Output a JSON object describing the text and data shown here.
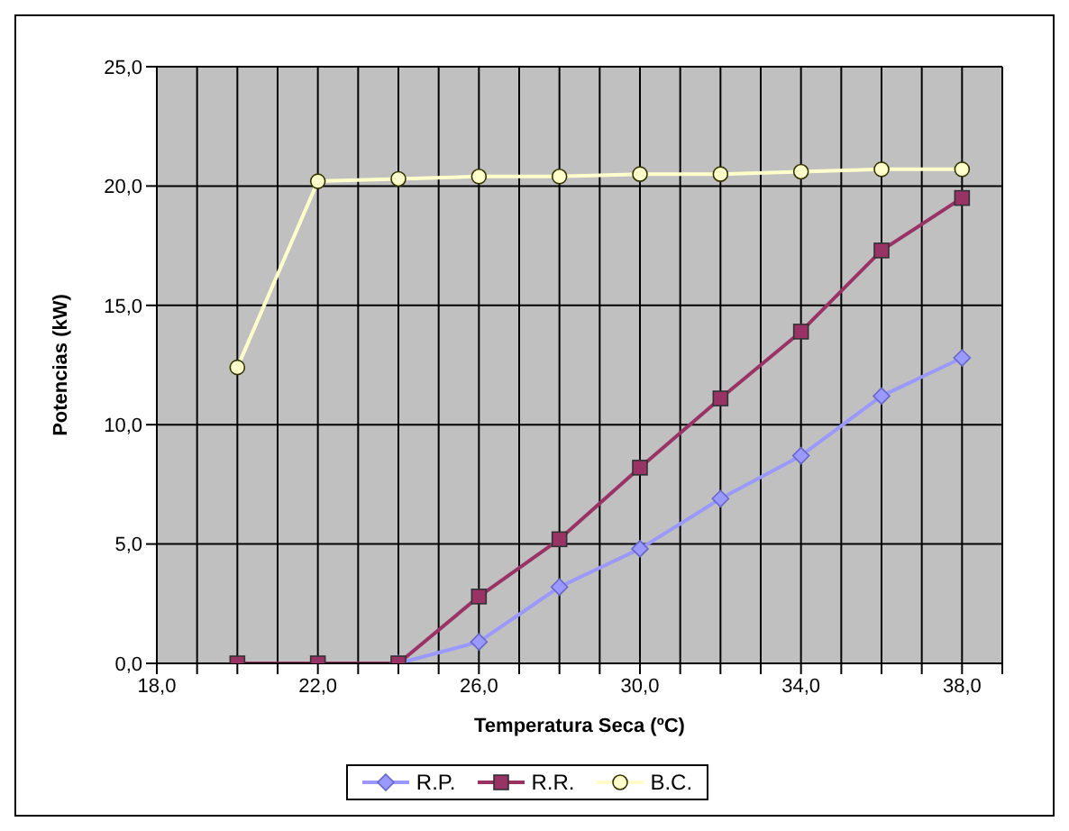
{
  "chart_data": {
    "type": "line",
    "xlabel": "Temperatura Seca (ºC)",
    "ylabel": "Potencias (kW)",
    "x": [
      20,
      22,
      24,
      26,
      28,
      30,
      32,
      34,
      36,
      38
    ],
    "xlim": [
      18,
      39
    ],
    "xticks": [
      {
        "value": 18,
        "label": "18,0"
      },
      {
        "value": 19,
        "label": null
      },
      {
        "value": 20,
        "label": null
      },
      {
        "value": 21,
        "label": null
      },
      {
        "value": 22,
        "label": "22,0"
      },
      {
        "value": 23,
        "label": null
      },
      {
        "value": 24,
        "label": null
      },
      {
        "value": 25,
        "label": null
      },
      {
        "value": 26,
        "label": "26,0"
      },
      {
        "value": 27,
        "label": null
      },
      {
        "value": 28,
        "label": null
      },
      {
        "value": 29,
        "label": null
      },
      {
        "value": 30,
        "label": "30,0"
      },
      {
        "value": 31,
        "label": null
      },
      {
        "value": 32,
        "label": null
      },
      {
        "value": 33,
        "label": null
      },
      {
        "value": 34,
        "label": "34,0"
      },
      {
        "value": 35,
        "label": null
      },
      {
        "value": 36,
        "label": null
      },
      {
        "value": 37,
        "label": null
      },
      {
        "value": 38,
        "label": "38,0"
      },
      {
        "value": 39,
        "label": null
      }
    ],
    "ylim": [
      0,
      25
    ],
    "yticks": [
      {
        "value": 0,
        "label": "0,0"
      },
      {
        "value": 5,
        "label": "5,0"
      },
      {
        "value": 10,
        "label": "10,0"
      },
      {
        "value": 15,
        "label": "15,0"
      },
      {
        "value": 20,
        "label": "20,0"
      },
      {
        "value": 25,
        "label": "25,0"
      }
    ],
    "grid": true,
    "legend": "bottom",
    "series": [
      {
        "name": "R.P.",
        "color": "#9999ff",
        "marker": "diamond",
        "values": [
          null,
          null,
          0,
          0.9,
          3.2,
          4.8,
          6.9,
          8.7,
          11.2,
          12.8
        ]
      },
      {
        "name": "R.R.",
        "color": "#993366",
        "marker": "square",
        "values": [
          0,
          0,
          0,
          2.8,
          5.2,
          8.2,
          11.1,
          13.9,
          17.3,
          19.5
        ]
      },
      {
        "name": "B.C.",
        "color": "#ffffcc",
        "marker": "circle",
        "values": [
          12.4,
          20.2,
          20.3,
          20.4,
          20.4,
          20.5,
          20.5,
          20.6,
          20.7,
          20.7
        ]
      }
    ]
  }
}
